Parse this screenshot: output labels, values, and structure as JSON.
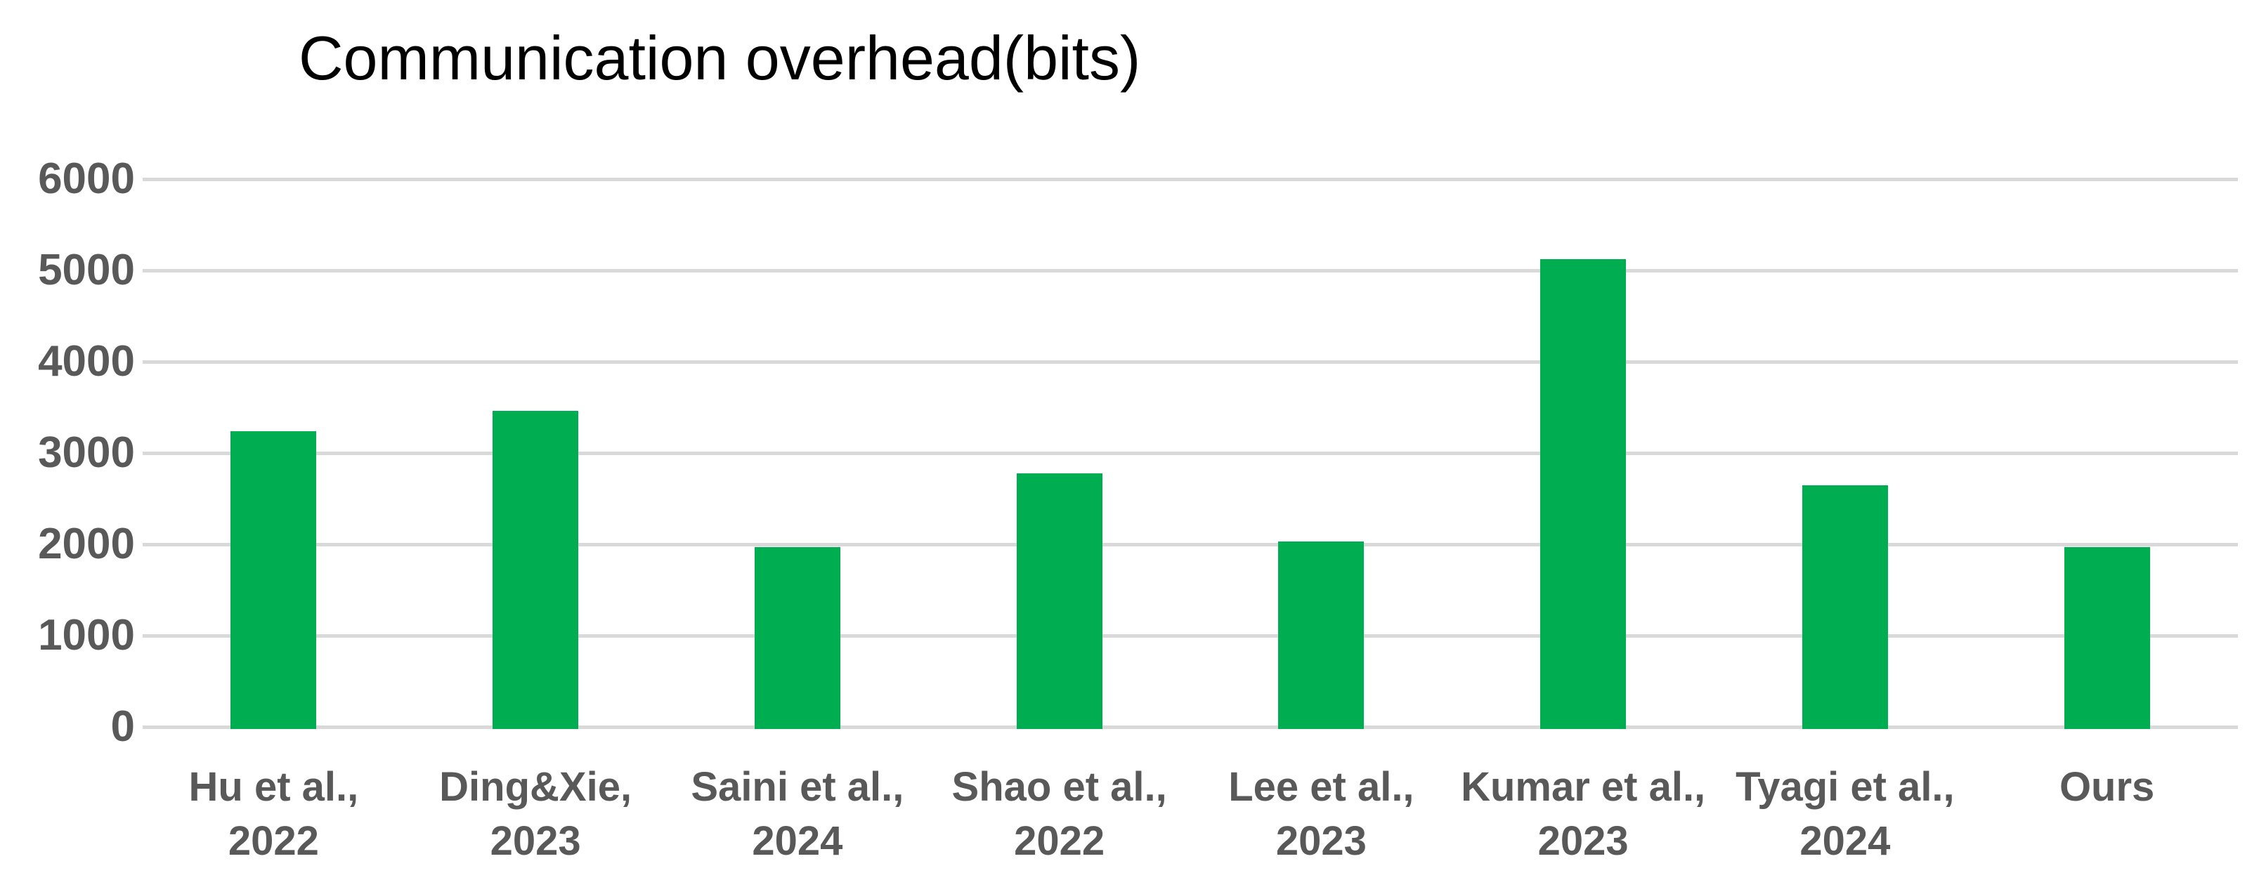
{
  "chart_data": {
    "type": "bar",
    "title": "Communication overhead(bits)",
    "categories": [
      "Hu et al., 2022",
      "Ding&Xie, 2023",
      "Saini et al., 2024",
      "Shao et al., 2022",
      "Lee et al., 2023",
      "Kumar et al., 2023",
      "Tyagi et al., 2024",
      "Ours"
    ],
    "category_lines": [
      [
        "Hu et al.,",
        "2022"
      ],
      [
        "Ding&Xie,",
        "2023"
      ],
      [
        "Saini et al.,",
        "2024"
      ],
      [
        "Shao et al.,",
        "2022"
      ],
      [
        "Lee et al.,",
        "2023"
      ],
      [
        "Kumar et al.,",
        "2023"
      ],
      [
        "Tyagi et al.,",
        "2024"
      ],
      [
        "Ours"
      ]
    ],
    "values": [
      3240,
      3460,
      1970,
      2780,
      2030,
      5120,
      2650,
      1970
    ],
    "yticks": [
      0,
      1000,
      2000,
      3000,
      4000,
      5000,
      6000
    ],
    "ytick_labels": [
      "0",
      "1000",
      "2000",
      "3000",
      "4000",
      "5000",
      "6000"
    ],
    "ylim": [
      0,
      6000
    ],
    "xlabel": "",
    "ylabel": "",
    "grid": "horizontal-on",
    "legend": "none",
    "bar_color": "#00AD50",
    "gridline_color": "#D9D9D9",
    "axis_label_color": "#595959",
    "title_color": "#000000"
  }
}
